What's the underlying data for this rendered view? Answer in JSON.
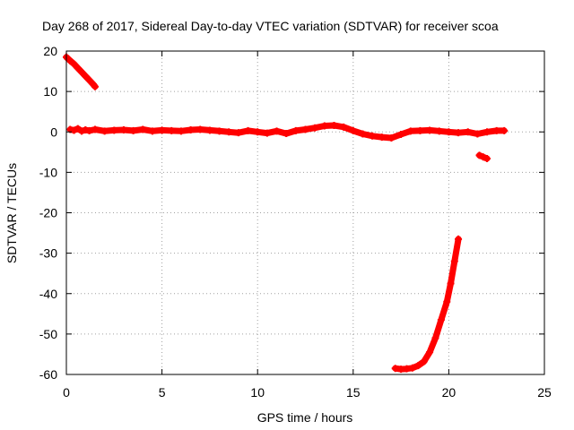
{
  "chart_data": {
    "type": "scatter",
    "title": "Day 268 of 2017, Sidereal Day-to-day VTEC variation (SDTVAR) for receiver scoa",
    "xlabel": "GPS time / hours",
    "ylabel": "SDTVAR / TECUs",
    "xlim": [
      0,
      25
    ],
    "ylim": [
      -60,
      20
    ],
    "xticks": [
      0,
      5,
      10,
      15,
      20,
      25
    ],
    "yticks": [
      -60,
      -50,
      -40,
      -30,
      -20,
      -10,
      0,
      10,
      20
    ],
    "xtick_labels": [
      "0",
      "5",
      "10",
      "15",
      "20",
      "25"
    ],
    "ytick_labels": [
      "-60",
      "-50",
      "-40",
      "-30",
      "-20",
      "-10",
      "0",
      "10",
      "20"
    ],
    "grid": true,
    "marker": "+",
    "color": "#ff0000",
    "series": [
      {
        "name": "early-descent",
        "points": [
          [
            0.0,
            18.5
          ],
          [
            0.2,
            17.6
          ],
          [
            0.4,
            16.8
          ],
          [
            0.6,
            15.8
          ],
          [
            0.8,
            14.8
          ],
          [
            1.0,
            13.8
          ],
          [
            1.2,
            12.8
          ],
          [
            1.4,
            11.8
          ],
          [
            1.5,
            11.2
          ]
        ]
      },
      {
        "name": "main-band",
        "points": [
          [
            0.2,
            0.6
          ],
          [
            0.4,
            0.4
          ],
          [
            0.6,
            0.8
          ],
          [
            0.8,
            0.2
          ],
          [
            1.0,
            0.5
          ],
          [
            1.2,
            0.3
          ],
          [
            1.5,
            0.6
          ],
          [
            2.0,
            0.2
          ],
          [
            2.5,
            0.4
          ],
          [
            3.0,
            0.5
          ],
          [
            3.5,
            0.3
          ],
          [
            4.0,
            0.6
          ],
          [
            4.5,
            0.2
          ],
          [
            5.0,
            0.4
          ],
          [
            5.5,
            0.3
          ],
          [
            6.0,
            0.2
          ],
          [
            6.5,
            0.5
          ],
          [
            7.0,
            0.6
          ],
          [
            7.5,
            0.4
          ],
          [
            8.0,
            0.2
          ],
          [
            8.5,
            0.0
          ],
          [
            9.0,
            -0.2
          ],
          [
            9.5,
            0.3
          ],
          [
            10.0,
            0.0
          ],
          [
            10.5,
            -0.3
          ],
          [
            11.0,
            0.2
          ],
          [
            11.5,
            -0.4
          ],
          [
            12.0,
            0.3
          ],
          [
            12.5,
            0.6
          ],
          [
            13.0,
            1.0
          ],
          [
            13.5,
            1.5
          ],
          [
            14.0,
            1.6
          ],
          [
            14.5,
            1.2
          ],
          [
            15.0,
            0.3
          ],
          [
            15.5,
            -0.5
          ],
          [
            16.0,
            -1.0
          ],
          [
            16.5,
            -1.3
          ],
          [
            17.0,
            -1.5
          ],
          [
            17.5,
            -0.6
          ],
          [
            18.0,
            0.2
          ],
          [
            18.5,
            0.3
          ],
          [
            19.0,
            0.4
          ],
          [
            19.5,
            0.2
          ],
          [
            20.0,
            0.0
          ],
          [
            20.5,
            -0.2
          ],
          [
            21.0,
            0.0
          ],
          [
            21.5,
            -0.5
          ],
          [
            22.0,
            0.0
          ],
          [
            22.5,
            0.3
          ],
          [
            22.9,
            0.3
          ]
        ]
      },
      {
        "name": "late-dip",
        "points": [
          [
            21.6,
            -5.8
          ],
          [
            21.8,
            -6.2
          ],
          [
            22.0,
            -6.6
          ]
        ]
      },
      {
        "name": "steep-rise",
        "points": [
          [
            17.2,
            -58.5
          ],
          [
            17.5,
            -58.7
          ],
          [
            17.8,
            -58.6
          ],
          [
            18.1,
            -58.4
          ],
          [
            18.4,
            -57.8
          ],
          [
            18.7,
            -56.8
          ],
          [
            19.0,
            -54.5
          ],
          [
            19.3,
            -51.0
          ],
          [
            19.6,
            -46.5
          ],
          [
            19.9,
            -42.0
          ],
          [
            20.1,
            -37.5
          ],
          [
            20.3,
            -32.0
          ],
          [
            20.5,
            -26.5
          ]
        ]
      }
    ]
  }
}
